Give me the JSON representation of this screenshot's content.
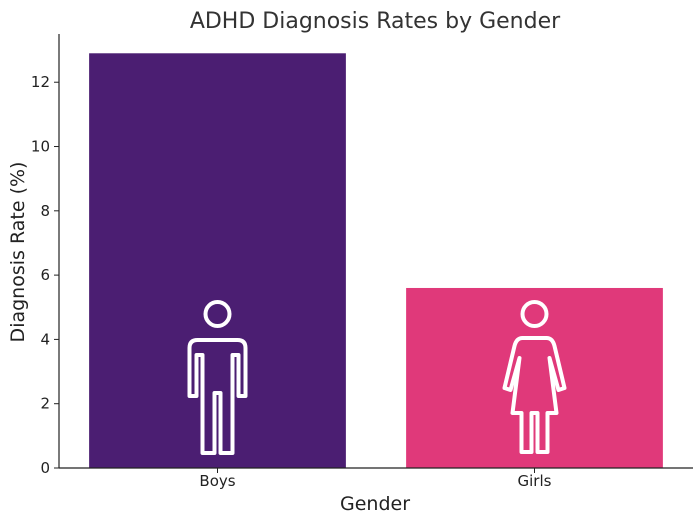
{
  "chart_data": {
    "type": "bar",
    "title": "ADHD Diagnosis Rates by Gender",
    "xlabel": "Gender",
    "ylabel": "Diagnosis Rate (%)",
    "categories": [
      "Boys",
      "Girls"
    ],
    "values": [
      12.9,
      5.6
    ],
    "colors": [
      "#4b1e72",
      "#e0397a"
    ],
    "icons": [
      "male-figure-icon",
      "female-figure-icon"
    ],
    "ylim": [
      0,
      13.5
    ],
    "yticks": [
      0,
      2,
      4,
      6,
      8,
      10,
      12
    ],
    "grid": false,
    "legend": "none"
  }
}
